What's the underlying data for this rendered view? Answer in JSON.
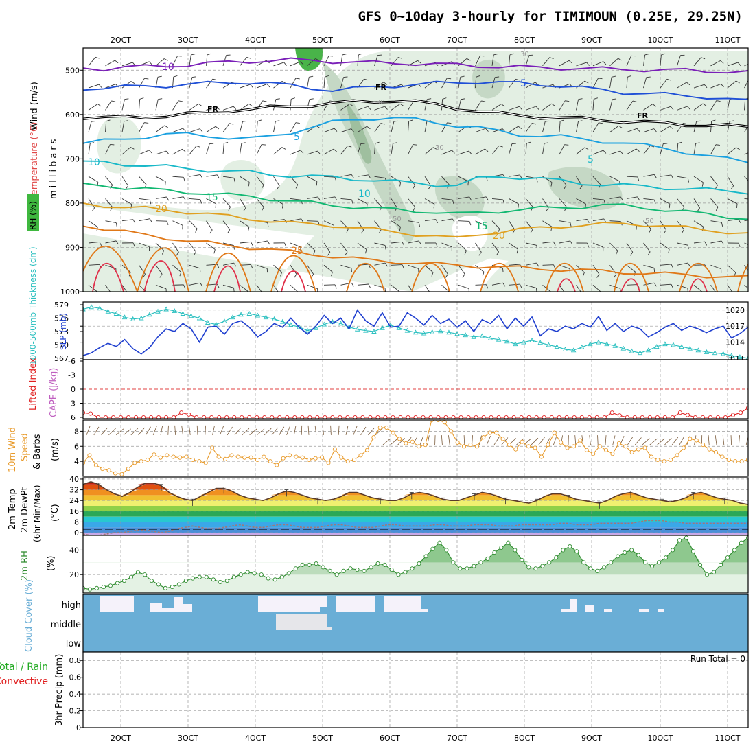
{
  "title": "GFS 0~10day 3-hourly for TIMIMOUN (0.25E, 29.25N)",
  "date_labels": [
    "2OCT",
    "3OCT",
    "4OCT",
    "5OCT",
    "6OCT",
    "7OCT",
    "8OCT",
    "9OCT",
    "10OCT",
    "11OCT"
  ],
  "colors": {
    "temp_10": "#7a1fb8",
    "temp_5": "#1f4fd6",
    "temp_freezing": "#000000",
    "temp_m5": "#1aa0e0",
    "temp_m10": "#18b8c8",
    "temp_15": "#12b872",
    "temp_20": "#e0a020",
    "temp_25": "#e07818",
    "temp_30": "#e0304a",
    "rh": "#4fb84f",
    "slp": "#1f3fcf",
    "thickness": "#2cc0c0",
    "lifted_index": "#e02020",
    "cape": "#c060c0",
    "wind10m": "#e89a2a",
    "barbs": "#7a5a3a",
    "rh2m": "#2e8b2e",
    "cloud": "#6aaed6",
    "precip_total": "#22aa22",
    "precip_conv": "#e02020"
  },
  "chart_data": [
    {
      "panel": "upper_air",
      "type": "line",
      "ylabel_parts": [
        "Wind (m/s)",
        "Temperature (°C)",
        "millibars",
        "RH (%)"
      ],
      "yticks": [
        500,
        600,
        700,
        800,
        900,
        1000
      ],
      "ylim": [
        1000,
        450
      ],
      "contour_labels": [
        "10",
        "5",
        "FR",
        "FR",
        "FR",
        "5",
        "5",
        "10",
        "10",
        "15",
        "15",
        "20",
        "20",
        "25",
        "30",
        "30",
        "30",
        "50",
        "50"
      ],
      "series": [
        {
          "label": "10",
          "values": [
            495,
            497,
            493,
            492,
            490,
            488,
            485,
            482,
            480,
            478,
            477,
            478,
            480,
            482,
            483,
            484,
            485,
            487,
            488,
            490,
            492,
            493,
            494,
            495,
            496,
            497,
            498,
            499,
            500,
            500,
            502,
            503,
            505
          ]
        },
        {
          "label": "5",
          "values": [
            545,
            540,
            538,
            536,
            535,
            532,
            530,
            528,
            527,
            530,
            535,
            540,
            545,
            542,
            538,
            535,
            532,
            530,
            528,
            526,
            528,
            530,
            532,
            535,
            540,
            545,
            550,
            552,
            555,
            558,
            560,
            565,
            570
          ]
        },
        {
          "label": "FR",
          "values": [
            610,
            608,
            607,
            605,
            603,
            600,
            595,
            590,
            588,
            585,
            582,
            578,
            575,
            572,
            570,
            568,
            572,
            578,
            585,
            592,
            598,
            602,
            605,
            608,
            610,
            612,
            615,
            618,
            620,
            622,
            624,
            626,
            628
          ]
        },
        {
          "label": "5",
          "values": [
            665,
            660,
            655,
            650,
            645,
            645,
            648,
            652,
            655,
            650,
            640,
            628,
            618,
            612,
            608,
            608,
            612,
            618,
            625,
            630,
            638,
            645,
            648,
            650,
            655,
            660,
            665,
            670,
            675,
            685,
            695,
            700,
            705
          ]
        },
        {
          "label": "10",
          "values": [
            705,
            708,
            712,
            715,
            718,
            722,
            725,
            728,
            730,
            735,
            738,
            740,
            742,
            745,
            748,
            752,
            755,
            758,
            760,
            745,
            740,
            742,
            745,
            750,
            755,
            758,
            760,
            762,
            765,
            768,
            770,
            772,
            775
          ]
        },
        {
          "label": "15",
          "values": [
            755,
            760,
            765,
            768,
            772,
            775,
            778,
            782,
            785,
            790,
            795,
            800,
            805,
            808,
            812,
            815,
            818,
            820,
            825,
            822,
            818,
            815,
            812,
            810,
            808,
            805,
            806,
            810,
            815,
            820,
            825,
            830,
            835
          ]
        },
        {
          "label": "20",
          "values": [
            800,
            805,
            810,
            812,
            815,
            820,
            825,
            830,
            835,
            840,
            845,
            848,
            850,
            855,
            860,
            865,
            870,
            875,
            880,
            870,
            865,
            860,
            856,
            852,
            850,
            848,
            846,
            848,
            852,
            856,
            860,
            865,
            870
          ]
        },
        {
          "label": "25",
          "values": [
            852,
            858,
            865,
            872,
            878,
            885,
            890,
            895,
            900,
            905,
            910,
            915,
            920,
            925,
            930,
            932,
            935,
            938,
            940,
            942,
            944,
            946,
            948,
            950,
            952,
            954,
            956,
            958,
            960,
            962,
            964,
            966,
            968
          ]
        }
      ]
    },
    {
      "panel": "slp_thickness",
      "type": "line",
      "ylabel_left": "1000-500mb Thickness (dm)",
      "ylabel_right": "SLP (mb)",
      "yticks_left": [
        567,
        570,
        573,
        576,
        579
      ],
      "yticks_right": [
        1011,
        1014,
        1017,
        1020
      ],
      "series": [
        {
          "name": "SLP",
          "axis": "right",
          "values": [
            1011.5,
            1012.0,
            1013.0,
            1013.8,
            1013.2,
            1014.5,
            1012.8,
            1011.8,
            1013.0,
            1015.0,
            1016.5,
            1016.0,
            1017.5,
            1016.5,
            1014.0,
            1016.8,
            1017.0,
            1015.5,
            1017.5,
            1018.0,
            1016.8,
            1015.0,
            1016.0,
            1017.5,
            1016.8,
            1018.5,
            1016.8,
            1015.5,
            1017.0,
            1019.0,
            1017.5,
            1018.5,
            1016.5,
            1020.0,
            1018.0,
            1017.0,
            1019.5,
            1016.8,
            1017.0,
            1019.5,
            1018.5,
            1017.2,
            1019.0,
            1017.5,
            1018.3,
            1016.8,
            1018.0,
            1016.0,
            1018.2,
            1017.5,
            1019.0,
            1016.5,
            1018.5,
            1017.0,
            1018.7,
            1015.2,
            1016.5,
            1016.0,
            1017.0,
            1016.5,
            1017.5,
            1016.8,
            1018.8,
            1016.2,
            1017.5,
            1016.0,
            1017.0,
            1016.5,
            1015.0,
            1015.8,
            1016.8,
            1017.5,
            1016.2,
            1017.0,
            1016.5,
            1015.8,
            1016.5,
            1017.0,
            1014.8,
            1015.6,
            1016.8
          ]
        },
        {
          "name": "Thickness",
          "axis": "left",
          "values": [
            578.0,
            578.5,
            578.2,
            577.5,
            577.0,
            576.2,
            575.8,
            576.0,
            576.8,
            577.5,
            578.0,
            577.6,
            577.0,
            576.5,
            576.0,
            575.0,
            574.6,
            575.3,
            576.2,
            576.8,
            577.0,
            576.6,
            576.2,
            575.8,
            575.2,
            574.5,
            574.0,
            573.2,
            573.8,
            574.6,
            575.2,
            574.8,
            574.0,
            573.5,
            573.2,
            573.0,
            573.8,
            574.4,
            573.8,
            573.2,
            572.8,
            572.6,
            572.9,
            573.1,
            572.8,
            572.5,
            572.2,
            571.8,
            572.0,
            571.5,
            571.2,
            570.8,
            570.2,
            570.6,
            571.0,
            570.5,
            570.0,
            569.6,
            569.0,
            568.8,
            569.5,
            570.2,
            570.6,
            570.2,
            569.8,
            569.2,
            568.6,
            568.2,
            568.8,
            569.6,
            570.2,
            570.0,
            569.6,
            569.2,
            568.8,
            568.4,
            568.2,
            568.0,
            567.6,
            567.3,
            567.0
          ]
        }
      ]
    },
    {
      "panel": "li_cape",
      "type": "line",
      "ylabel_left": "Lifted Index",
      "ylabel_right": "CAPE (J/kg)",
      "yticks": [
        -6,
        -3,
        0,
        3,
        6
      ],
      "ylim": [
        -6,
        6
      ],
      "series": [
        {
          "name": "Lifted Index",
          "values": [
            5.0,
            5.2,
            6.0,
            6.0,
            6.0,
            6.0,
            6.0,
            6.0,
            6.0,
            6.0,
            6.0,
            6.0,
            6.0,
            5.0,
            5.4,
            6.0,
            6.0,
            6.0,
            6.0,
            6.0,
            6.0,
            6.0,
            6.0,
            6.0,
            6.0,
            6.0,
            6.0,
            6.0,
            6.0,
            6.0,
            6.0,
            6.0,
            6.0,
            6.0,
            6.0,
            6.0,
            6.0,
            6.0,
            6.0,
            6.0,
            6.0,
            6.0,
            6.0,
            6.0,
            6.0,
            6.0,
            6.0,
            6.0,
            6.0,
            6.0,
            6.0,
            6.0,
            6.0,
            6.0,
            6.0,
            6.0,
            6.0,
            6.0,
            6.0,
            6.0,
            6.0,
            6.0,
            6.0,
            6.0,
            6.0,
            6.0,
            6.0,
            6.0,
            6.0,
            6.0,
            5.0,
            5.6,
            6.0,
            6.0,
            6.0,
            6.0,
            6.0,
            6.0,
            6.0,
            5.0,
            5.5,
            6.0,
            6.0,
            6.0,
            6.0,
            6.0,
            5.5,
            5.0,
            4.0
          ]
        }
      ]
    },
    {
      "panel": "wind10m",
      "type": "line",
      "ylabel_parts": [
        "10m Wind",
        "Speed",
        "& Barbs",
        "(m/s)"
      ],
      "yticks": [
        4,
        6,
        8
      ],
      "ylim": [
        2,
        9.5
      ],
      "series": [
        {
          "name": "10m Wind Speed",
          "values": [
            3.8,
            4.8,
            3.5,
            3.0,
            2.8,
            2.4,
            2.3,
            3.0,
            3.8,
            4.0,
            4.2,
            4.9,
            4.5,
            4.8,
            4.6,
            4.5,
            4.6,
            4.2,
            4.0,
            3.8,
            5.8,
            4.6,
            4.3,
            4.8,
            4.6,
            4.5,
            4.5,
            4.2,
            4.6,
            4.0,
            3.5,
            4.4,
            4.8,
            4.6,
            4.5,
            4.2,
            4.4,
            4.5,
            3.8,
            5.6,
            4.5,
            4.0,
            4.2,
            4.8,
            5.5,
            7.2,
            8.5,
            8.5,
            7.8,
            7.0,
            6.4,
            6.6,
            6.0,
            6.2,
            9.5,
            9.5,
            9.2,
            8.0,
            6.5,
            6.0,
            6.2,
            6.0,
            7.2,
            7.8,
            7.8,
            7.0,
            6.2,
            5.6,
            6.6,
            6.0,
            5.8,
            4.6,
            6.2,
            7.8,
            6.5,
            5.8,
            6.0,
            6.8,
            5.5,
            5.0,
            6.0,
            5.5,
            5.0,
            6.4,
            6.0,
            5.2,
            5.6,
            5.8,
            4.6,
            4.2,
            4.0,
            4.2,
            4.8,
            5.8,
            7.0,
            6.8,
            6.2,
            5.6,
            5.2,
            4.6,
            4.2,
            4.0,
            4.0,
            4.2
          ]
        }
      ]
    },
    {
      "panel": "temp2m",
      "type": "area",
      "ylabel_parts": [
        "2m Temp",
        "2m DewPt",
        "(6hr Min/Max)",
        "(°C)"
      ],
      "yticks": [
        0,
        8,
        16,
        24,
        32,
        40
      ],
      "ylim": [
        -2,
        41
      ],
      "series": [
        {
          "name": "2m Temp",
          "values": [
            36,
            38,
            36,
            32,
            29,
            27,
            30,
            34,
            37,
            37,
            35,
            30,
            27,
            25,
            24,
            27,
            30,
            33,
            33,
            31,
            28,
            26,
            25,
            24,
            26,
            29,
            31,
            30,
            28,
            26,
            25,
            24,
            25,
            27,
            30,
            30,
            28,
            26,
            25,
            24,
            24,
            26,
            29,
            30,
            29,
            27,
            25,
            24,
            24,
            26,
            28,
            30,
            29,
            27,
            25,
            24,
            23,
            22,
            24,
            27,
            29,
            29,
            27,
            25,
            24,
            23,
            22,
            24,
            27,
            29,
            30,
            28,
            26,
            25,
            24,
            23,
            24,
            26,
            29,
            30,
            28,
            26,
            25,
            24,
            22,
            21
          ]
        },
        {
          "name": "2m DewPt",
          "values": [
            -1,
            -2,
            -2,
            -1,
            0,
            0,
            1,
            2,
            2,
            1,
            0,
            1,
            3,
            4,
            5,
            4,
            3,
            3,
            4,
            5,
            6,
            5,
            4,
            4,
            5,
            6,
            6,
            5,
            4,
            4,
            4,
            5,
            6,
            6,
            5,
            4,
            4,
            4,
            5,
            6,
            6,
            5,
            5,
            5,
            5,
            6,
            6,
            5,
            5,
            5,
            6,
            6,
            6,
            5,
            5,
            5,
            6,
            6,
            6,
            6,
            6,
            7,
            7,
            6,
            6,
            6,
            7,
            7,
            7,
            7,
            7,
            8,
            9,
            9,
            9,
            8,
            8,
            7,
            7,
            7,
            7,
            7,
            7,
            7,
            7,
            7
          ]
        }
      ]
    },
    {
      "panel": "rh2m",
      "type": "area",
      "ylabel_parts": [
        "2m RH",
        "(%)"
      ],
      "yticks": [
        20,
        40
      ],
      "ylim": [
        5,
        52
      ],
      "series": [
        {
          "name": "2m RH",
          "values": [
            9,
            8,
            9,
            10,
            11,
            13,
            15,
            18,
            22,
            20,
            15,
            12,
            9,
            10,
            12,
            15,
            17,
            18,
            18,
            16,
            14,
            15,
            18,
            20,
            22,
            21,
            20,
            17,
            16,
            18,
            21,
            25,
            28,
            28,
            29,
            26,
            23,
            20,
            23,
            25,
            24,
            23,
            26,
            29,
            28,
            24,
            20,
            22,
            25,
            29,
            35,
            41,
            46,
            40,
            30,
            25,
            25,
            27,
            30,
            33,
            38,
            42,
            46,
            40,
            32,
            26,
            25,
            27,
            30,
            34,
            40,
            43,
            39,
            30,
            25,
            23,
            26,
            30,
            35,
            38,
            40,
            36,
            30,
            27,
            30,
            34,
            40,
            48,
            50,
            39,
            28,
            20,
            22,
            28,
            34,
            40,
            46,
            50
          ]
        }
      ]
    },
    {
      "panel": "cloud_cover",
      "type": "heatmap",
      "ylabel": "Cloud Cover (%)",
      "levels": [
        "high",
        "middle",
        "low"
      ]
    },
    {
      "panel": "precip",
      "type": "bar",
      "ylabel_left": "Total / Rain",
      "ylabel_left2": "Convective",
      "ylabel_right": "3hr Precip (mm)",
      "yticks": [
        "0",
        "0.2",
        "0.4",
        "0.6",
        "0.8"
      ],
      "ylim": [
        0,
        0.9
      ],
      "run_total": "Run Total = 0",
      "values": []
    }
  ]
}
